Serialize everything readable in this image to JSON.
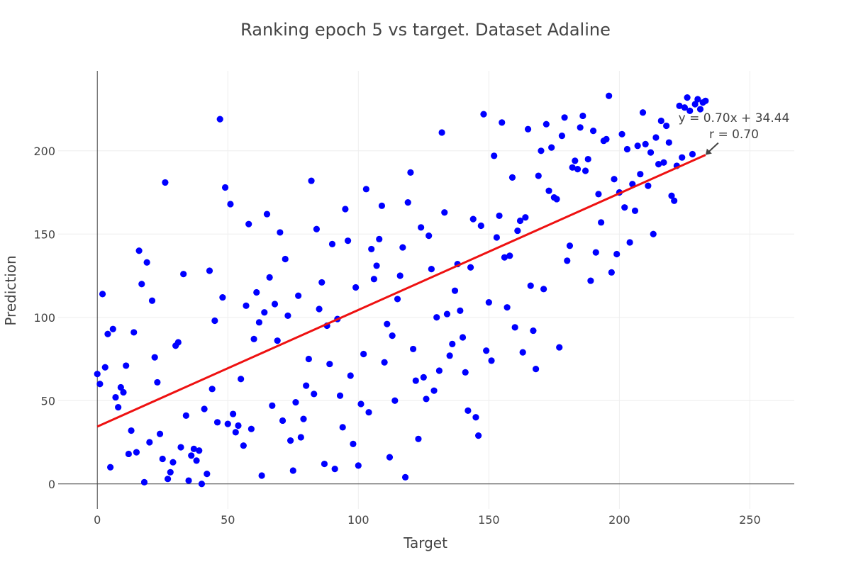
{
  "chart_data": {
    "type": "scatter",
    "title": "Ranking epoch 5 vs target. Dataset Adaline",
    "xlabel": "Target",
    "ylabel": "Prediction",
    "xlim": [
      -15,
      267
    ],
    "ylim": [
      -15,
      248
    ],
    "xticks": [
      0,
      50,
      100,
      150,
      200,
      250
    ],
    "yticks": [
      0,
      50,
      100,
      150,
      200
    ],
    "grid": true,
    "marker_color": "#0000ff",
    "line_color": "#ee1111",
    "fit_line": {
      "slope": 0.7,
      "intercept": 34.44,
      "x": [
        0,
        233
      ]
    },
    "annotation": {
      "equation": "y = 0.70x + 34.44",
      "r_label": "r = 0.70",
      "points_to": [
        233,
        197.5
      ]
    },
    "points": [
      [
        0,
        66
      ],
      [
        1,
        60
      ],
      [
        2,
        114
      ],
      [
        3,
        70
      ],
      [
        4,
        90
      ],
      [
        5,
        10
      ],
      [
        6,
        93
      ],
      [
        7,
        52
      ],
      [
        8,
        46
      ],
      [
        9,
        58
      ],
      [
        10,
        55
      ],
      [
        11,
        71
      ],
      [
        12,
        18
      ],
      [
        13,
        32
      ],
      [
        14,
        91
      ],
      [
        15,
        19
      ],
      [
        16,
        140
      ],
      [
        17,
        120
      ],
      [
        18,
        1
      ],
      [
        19,
        133
      ],
      [
        20,
        25
      ],
      [
        21,
        110
      ],
      [
        22,
        76
      ],
      [
        23,
        61
      ],
      [
        24,
        30
      ],
      [
        25,
        15
      ],
      [
        26,
        181
      ],
      [
        27,
        3
      ],
      [
        28,
        7
      ],
      [
        29,
        13
      ],
      [
        30,
        83
      ],
      [
        31,
        85
      ],
      [
        32,
        22
      ],
      [
        33,
        126
      ],
      [
        34,
        41
      ],
      [
        35,
        2
      ],
      [
        36,
        17
      ],
      [
        37,
        21
      ],
      [
        38,
        14
      ],
      [
        39,
        20
      ],
      [
        40,
        0
      ],
      [
        41,
        45
      ],
      [
        42,
        6
      ],
      [
        43,
        128
      ],
      [
        44,
        57
      ],
      [
        45,
        98
      ],
      [
        46,
        37
      ],
      [
        47,
        219
      ],
      [
        48,
        112
      ],
      [
        49,
        178
      ],
      [
        50,
        36
      ],
      [
        51,
        168
      ],
      [
        52,
        42
      ],
      [
        53,
        31
      ],
      [
        54,
        35
      ],
      [
        55,
        63
      ],
      [
        56,
        23
      ],
      [
        57,
        107
      ],
      [
        58,
        156
      ],
      [
        59,
        33
      ],
      [
        60,
        87
      ],
      [
        61,
        115
      ],
      [
        62,
        97
      ],
      [
        63,
        5
      ],
      [
        64,
        103
      ],
      [
        65,
        162
      ],
      [
        66,
        124
      ],
      [
        67,
        47
      ],
      [
        68,
        108
      ],
      [
        69,
        86
      ],
      [
        70,
        151
      ],
      [
        71,
        38
      ],
      [
        72,
        135
      ],
      [
        73,
        101
      ],
      [
        74,
        26
      ],
      [
        75,
        8
      ],
      [
        76,
        49
      ],
      [
        77,
        113
      ],
      [
        78,
        28
      ],
      [
        79,
        39
      ],
      [
        80,
        59
      ],
      [
        81,
        75
      ],
      [
        82,
        182
      ],
      [
        83,
        54
      ],
      [
        84,
        153
      ],
      [
        85,
        105
      ],
      [
        86,
        121
      ],
      [
        87,
        12
      ],
      [
        88,
        95
      ],
      [
        89,
        72
      ],
      [
        90,
        144
      ],
      [
        91,
        9
      ],
      [
        92,
        99
      ],
      [
        93,
        53
      ],
      [
        94,
        34
      ],
      [
        95,
        165
      ],
      [
        96,
        146
      ],
      [
        97,
        65
      ],
      [
        98,
        24
      ],
      [
        99,
        118
      ],
      [
        100,
        11
      ],
      [
        101,
        48
      ],
      [
        102,
        78
      ],
      [
        103,
        177
      ],
      [
        104,
        43
      ],
      [
        105,
        141
      ],
      [
        106,
        123
      ],
      [
        107,
        131
      ],
      [
        108,
        147
      ],
      [
        109,
        167
      ],
      [
        110,
        73
      ],
      [
        111,
        96
      ],
      [
        112,
        16
      ],
      [
        113,
        89
      ],
      [
        114,
        50
      ],
      [
        115,
        111
      ],
      [
        116,
        125
      ],
      [
        117,
        142
      ],
      [
        118,
        4
      ],
      [
        119,
        169
      ],
      [
        120,
        187
      ],
      [
        121,
        81
      ],
      [
        122,
        62
      ],
      [
        123,
        27
      ],
      [
        124,
        154
      ],
      [
        125,
        64
      ],
      [
        126,
        51
      ],
      [
        127,
        149
      ],
      [
        128,
        129
      ],
      [
        129,
        56
      ],
      [
        130,
        100
      ],
      [
        131,
        68
      ],
      [
        132,
        211
      ],
      [
        133,
        163
      ],
      [
        134,
        102
      ],
      [
        135,
        77
      ],
      [
        136,
        84
      ],
      [
        137,
        116
      ],
      [
        138,
        132
      ],
      [
        139,
        104
      ],
      [
        140,
        88
      ],
      [
        141,
        67
      ],
      [
        142,
        44
      ],
      [
        143,
        130
      ],
      [
        144,
        159
      ],
      [
        145,
        40
      ],
      [
        146,
        29
      ],
      [
        147,
        155
      ],
      [
        148,
        222
      ],
      [
        149,
        80
      ],
      [
        150,
        109
      ],
      [
        151,
        74
      ],
      [
        152,
        197
      ],
      [
        153,
        148
      ],
      [
        154,
        161
      ],
      [
        155,
        217
      ],
      [
        156,
        136
      ],
      [
        157,
        106
      ],
      [
        158,
        137
      ],
      [
        159,
        184
      ],
      [
        160,
        94
      ],
      [
        161,
        152
      ],
      [
        162,
        158
      ],
      [
        163,
        79
      ],
      [
        164,
        160
      ],
      [
        165,
        213
      ],
      [
        166,
        119
      ],
      [
        167,
        92
      ],
      [
        168,
        69
      ],
      [
        169,
        185
      ],
      [
        170,
        200
      ],
      [
        171,
        117
      ],
      [
        172,
        216
      ],
      [
        173,
        176
      ],
      [
        174,
        202
      ],
      [
        175,
        172
      ],
      [
        176,
        171
      ],
      [
        177,
        82
      ],
      [
        178,
        209
      ],
      [
        179,
        220
      ],
      [
        180,
        134
      ],
      [
        181,
        143
      ],
      [
        182,
        190
      ],
      [
        183,
        194
      ],
      [
        184,
        189
      ],
      [
        185,
        214
      ],
      [
        186,
        221
      ],
      [
        187,
        188
      ],
      [
        188,
        195
      ],
      [
        189,
        122
      ],
      [
        190,
        212
      ],
      [
        191,
        139
      ],
      [
        192,
        174
      ],
      [
        193,
        157
      ],
      [
        194,
        206
      ],
      [
        195,
        207
      ],
      [
        196,
        233
      ],
      [
        197,
        127
      ],
      [
        198,
        183
      ],
      [
        199,
        138
      ],
      [
        200,
        175
      ],
      [
        201,
        210
      ],
      [
        202,
        166
      ],
      [
        203,
        201
      ],
      [
        204,
        145
      ],
      [
        205,
        180
      ],
      [
        206,
        164
      ],
      [
        207,
        203
      ],
      [
        208,
        186
      ],
      [
        209,
        223
      ],
      [
        210,
        204
      ],
      [
        211,
        179
      ],
      [
        212,
        199
      ],
      [
        213,
        150
      ],
      [
        214,
        208
      ],
      [
        215,
        192
      ],
      [
        216,
        218
      ],
      [
        217,
        193
      ],
      [
        218,
        215
      ],
      [
        219,
        205
      ],
      [
        220,
        173
      ],
      [
        221,
        170
      ],
      [
        222,
        191
      ],
      [
        223,
        227
      ],
      [
        224,
        196
      ],
      [
        225,
        226
      ],
      [
        226,
        232
      ],
      [
        227,
        224
      ],
      [
        228,
        198
      ],
      [
        229,
        228
      ],
      [
        230,
        231
      ],
      [
        231,
        225
      ],
      [
        232,
        229
      ],
      [
        233,
        230
      ]
    ]
  }
}
